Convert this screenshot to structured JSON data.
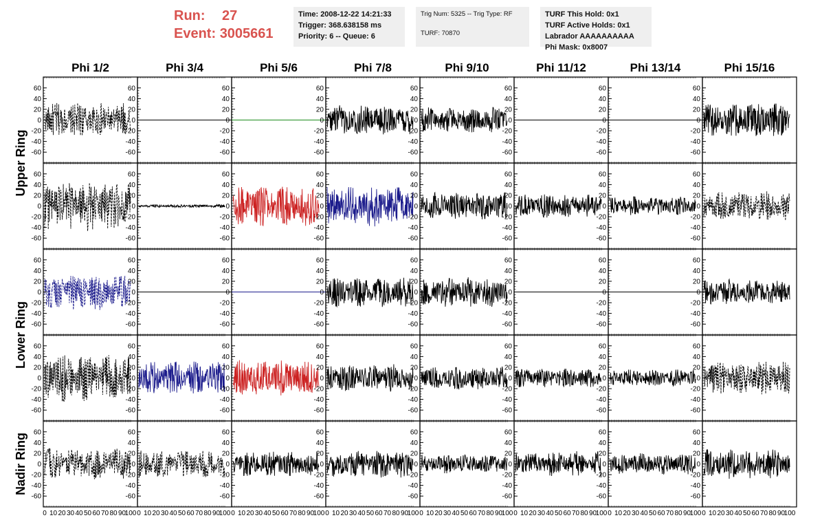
{
  "run_label": "Run:",
  "run_value": "27",
  "event_label": "Event:",
  "event_value": "3005661",
  "info_time": "Time: 2008-12-22 14:21:33",
  "info_trigger": "Trigger: 368.638158 ms",
  "info_priority": "Priority: 6 -- Queue: 6",
  "info_trig": "Trig Num: 5325 -- Trig Type: RF",
  "info_turf": "TURF: 70870",
  "info_hold": "TURF This Hold: 0x1",
  "info_active": "TURF Active Holds: 0x1",
  "info_labrador": "Labrador AAAAAAAAAA",
  "info_phimask": "Phi Mask: 0x8007",
  "columns": [
    "Phi 1/2",
    "Phi 3/4",
    "Phi 5/6",
    "Phi 7/8",
    "Phi 9/10",
    "Phi 11/12",
    "Phi 13/14",
    "Phi 15/16"
  ],
  "rows": [
    "Upper Ring",
    "Lower Ring",
    "Nadir Ring"
  ],
  "y_ticks": [
    "60",
    "40",
    "20",
    "0",
    "-20",
    "-40",
    "-60"
  ],
  "x_ticks": [
    "0",
    "10",
    "20",
    "30",
    "40",
    "50",
    "60",
    "70",
    "80",
    "90",
    "100"
  ],
  "colors": {
    "black": "#000000",
    "red": "#cc2222",
    "blue": "#1c1c8c",
    "green": "#1a8a1a",
    "run_text": "#d9534f",
    "box_bg": "#efefef"
  },
  "chart_data": {
    "type": "line",
    "title": "",
    "xlim": [
      0,
      100
    ],
    "ylim": [
      -70,
      70
    ],
    "panels": [
      {
        "row": 0,
        "col": 0,
        "style": "dashed",
        "color": "black",
        "amplitude": 32
      },
      {
        "row": 0,
        "col": 1,
        "style": "flat",
        "color": "black",
        "amplitude": 0
      },
      {
        "row": 0,
        "col": 2,
        "style": "flat",
        "color": "green",
        "amplitude": 0
      },
      {
        "row": 0,
        "col": 3,
        "style": "solid",
        "color": "black",
        "amplitude": 28
      },
      {
        "row": 0,
        "col": 4,
        "style": "solid",
        "color": "black",
        "amplitude": 24
      },
      {
        "row": 0,
        "col": 5,
        "style": "flat",
        "color": "black",
        "amplitude": 0
      },
      {
        "row": 0,
        "col": 6,
        "style": "flat",
        "color": "black",
        "amplitude": 0
      },
      {
        "row": 0,
        "col": 7,
        "style": "solid",
        "color": "black",
        "amplitude": 32
      },
      {
        "row": 1,
        "col": 0,
        "style": "dashed",
        "color": "black",
        "amplitude": 48
      },
      {
        "row": 1,
        "col": 1,
        "style": "solid",
        "color": "black",
        "amplitude": 3
      },
      {
        "row": 1,
        "col": 2,
        "style": "solid",
        "color": "red",
        "amplitude": 38
      },
      {
        "row": 1,
        "col": 3,
        "style": "solid",
        "color": "blue",
        "amplitude": 40
      },
      {
        "row": 1,
        "col": 4,
        "style": "solid",
        "color": "black",
        "amplitude": 26
      },
      {
        "row": 1,
        "col": 5,
        "style": "solid",
        "color": "black",
        "amplitude": 22
      },
      {
        "row": 1,
        "col": 6,
        "style": "solid",
        "color": "black",
        "amplitude": 18
      },
      {
        "row": 1,
        "col": 7,
        "style": "dashed",
        "color": "black",
        "amplitude": 28
      },
      {
        "row": 2,
        "col": 0,
        "style": "dashed",
        "color": "blue",
        "amplitude": 35
      },
      {
        "row": 2,
        "col": 1,
        "style": "flat",
        "color": "black",
        "amplitude": 0
      },
      {
        "row": 2,
        "col": 2,
        "style": "flat",
        "color": "blue",
        "amplitude": 0
      },
      {
        "row": 2,
        "col": 3,
        "style": "solid",
        "color": "black",
        "amplitude": 28
      },
      {
        "row": 2,
        "col": 4,
        "style": "solid",
        "color": "black",
        "amplitude": 28
      },
      {
        "row": 2,
        "col": 5,
        "style": "flat",
        "color": "black",
        "amplitude": 0
      },
      {
        "row": 2,
        "col": 6,
        "style": "flat",
        "color": "black",
        "amplitude": 0
      },
      {
        "row": 2,
        "col": 7,
        "style": "solid",
        "color": "black",
        "amplitude": 24
      },
      {
        "row": 3,
        "col": 0,
        "style": "dashed",
        "color": "black",
        "amplitude": 45
      },
      {
        "row": 3,
        "col": 1,
        "style": "solid",
        "color": "blue",
        "amplitude": 32
      },
      {
        "row": 3,
        "col": 2,
        "style": "solid",
        "color": "red",
        "amplitude": 34
      },
      {
        "row": 3,
        "col": 3,
        "style": "solid",
        "color": "black",
        "amplitude": 26
      },
      {
        "row": 3,
        "col": 4,
        "style": "solid",
        "color": "black",
        "amplitude": 22
      },
      {
        "row": 3,
        "col": 5,
        "style": "solid",
        "color": "black",
        "amplitude": 18
      },
      {
        "row": 3,
        "col": 6,
        "style": "solid",
        "color": "black",
        "amplitude": 16
      },
      {
        "row": 3,
        "col": 7,
        "style": "dashed",
        "color": "black",
        "amplitude": 32
      },
      {
        "row": 4,
        "col": 0,
        "style": "dashed",
        "color": "black",
        "amplitude": 30
      },
      {
        "row": 4,
        "col": 1,
        "style": "dashed",
        "color": "black",
        "amplitude": 26
      },
      {
        "row": 4,
        "col": 2,
        "style": "solid",
        "color": "black",
        "amplitude": 24
      },
      {
        "row": 4,
        "col": 3,
        "style": "solid",
        "color": "black",
        "amplitude": 26
      },
      {
        "row": 4,
        "col": 4,
        "style": "solid",
        "color": "black",
        "amplitude": 18
      },
      {
        "row": 4,
        "col": 5,
        "style": "solid",
        "color": "black",
        "amplitude": 24
      },
      {
        "row": 4,
        "col": 6,
        "style": "solid",
        "color": "black",
        "amplitude": 20
      },
      {
        "row": 4,
        "col": 7,
        "style": "solid",
        "color": "black",
        "amplitude": 28
      }
    ]
  }
}
